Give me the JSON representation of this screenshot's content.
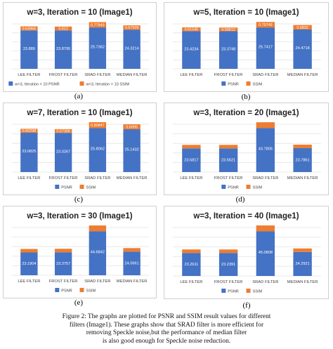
{
  "colors": {
    "psnr": "#4472c4",
    "ssim": "#ed7d31",
    "grid": "#e3e3e3",
    "text": "#404040"
  },
  "caption": {
    "line1": "Figure 2: The graphs are plotted for PSNR and SSIM result values for different",
    "line2": "filters (Image1). These graphs show that SRAD filter is more efficient for",
    "line3": "removing Speckle noise,but the performance of median filter",
    "line4": "is also good enough for Speckle noise reduction."
  },
  "chart_data": [
    {
      "type": "bar",
      "sublabel": "(a)",
      "title": "w=3, Iteration = 10 (Image1)",
      "categories": [
        "LEE FILTER",
        "FROST FILTER",
        "SRAD FILTER",
        "MEDIAN FILTER"
      ],
      "series": [
        {
          "name": "w=3, Iteration = 10 PSNR",
          "values": [
            23.889,
            23.8795,
            25.7362,
            24.3214
          ],
          "labels": [
            "23.889",
            "23.8795",
            "25.7362",
            "24.3214"
          ]
        },
        {
          "name": "w=3, Iteration = 10 SSIM",
          "values": [
            0.63966,
            0.612,
            0.77949,
            0.67509
          ],
          "labels": [
            "0.63966",
            "0.612",
            "0.77949",
            "0.67509"
          ]
        }
      ],
      "legend": "bottom"
    },
    {
      "type": "bar",
      "sublabel": "(b)",
      "title": "w=5, Iteration = 10 (Image1)",
      "categories": [
        "LEE FILTER",
        "FROST FILTER",
        "SRAD FILTER",
        "MEDIAN FILTER"
      ],
      "series": [
        {
          "name": "PSNR",
          "values": [
            23.4234,
            23.3748,
            25.7417,
            24.4718
          ],
          "labels": [
            "23.4234",
            "23.3748",
            "25.7417",
            "24.4718"
          ]
        },
        {
          "name": "SSIM",
          "values": [
            0.6154,
            0.59612,
            0.79749,
            0.6832
          ],
          "labels": [
            "0.61540",
            "0.59612",
            "0.79749",
            "0.6832"
          ]
        }
      ],
      "legend": "bottom"
    },
    {
      "type": "bar",
      "sublabel": "(c)",
      "title": "w=7, Iteration = 10 (Image1)",
      "categories": [
        "LEE FILTER",
        "FROST FILTER",
        "SRAD FILTER",
        "MEDIAN FILTER"
      ],
      "series": [
        {
          "name": "PSNR",
          "values": [
            23.0825,
            23.0267,
            25.8062,
            25.1432
          ],
          "labels": [
            "23.0825",
            "23.0267",
            "25.8062",
            "25.1432"
          ]
        },
        {
          "name": "SSIM",
          "values": [
            0.60298,
            0.57306,
            0.80847,
            0.6995
          ],
          "labels": [
            "0.60298",
            "0.57306",
            "0.80847",
            "0.6995"
          ]
        }
      ],
      "legend": "bottom"
    },
    {
      "type": "bar",
      "sublabel": "(d)",
      "title": "w=3, Iteration = 20 (Image1)",
      "categories": [
        "LEE FILTER",
        "FROST FILTER",
        "SRAD FILTER",
        "MEDIAN FILTER"
      ],
      "series": [
        {
          "name": "PSNR",
          "values": [
            23.5817,
            23.5621,
            43.7805,
            23.7861
          ],
          "labels": [
            "23.5817",
            "23.5621",
            "43.7805",
            "23.7861"
          ]
        },
        {
          "name": "SSIM",
          "values": [
            0.6,
            0.6,
            0.8,
            0.6
          ],
          "labels": [
            "",
            "",
            "",
            ""
          ]
        }
      ],
      "legend": "bottom"
    },
    {
      "type": "bar",
      "sublabel": "(e)",
      "title": "w=3, Iteration = 30 (Image1)",
      "categories": [
        "LEE FILTER",
        "FROST FILTER",
        "SRAD FILTER",
        "MEDIAN FILTER"
      ],
      "series": [
        {
          "name": "PSNR",
          "values": [
            23.1904,
            23.3757,
            44.6842,
            24.0661
          ],
          "labels": [
            "23.1904",
            "23.3757",
            "44.6842",
            "24.0661"
          ]
        },
        {
          "name": "SSIM",
          "values": [
            0.6,
            0.6,
            0.8,
            0.6
          ],
          "labels": [
            "",
            "",
            "",
            ""
          ]
        }
      ],
      "legend": "bottom"
    },
    {
      "type": "bar",
      "sublabel": "(f)",
      "title": "w=3, Iteration = 40 (Image1)",
      "categories": [
        "LEE FILTER",
        "FROST FILTER",
        "SRAD FILTER",
        "MEDIAN FILTER"
      ],
      "series": [
        {
          "name": "PSNR",
          "values": [
            23.2611,
            23.2391,
            45.0808,
            24.2921
          ],
          "labels": [
            "23.2611",
            "23.2391",
            "45.0808",
            "24.2921"
          ]
        },
        {
          "name": "SSIM",
          "values": [
            0.6,
            0.6,
            0.8,
            0.6
          ],
          "labels": [
            "",
            "",
            "",
            ""
          ]
        }
      ],
      "legend": "bottom"
    }
  ]
}
